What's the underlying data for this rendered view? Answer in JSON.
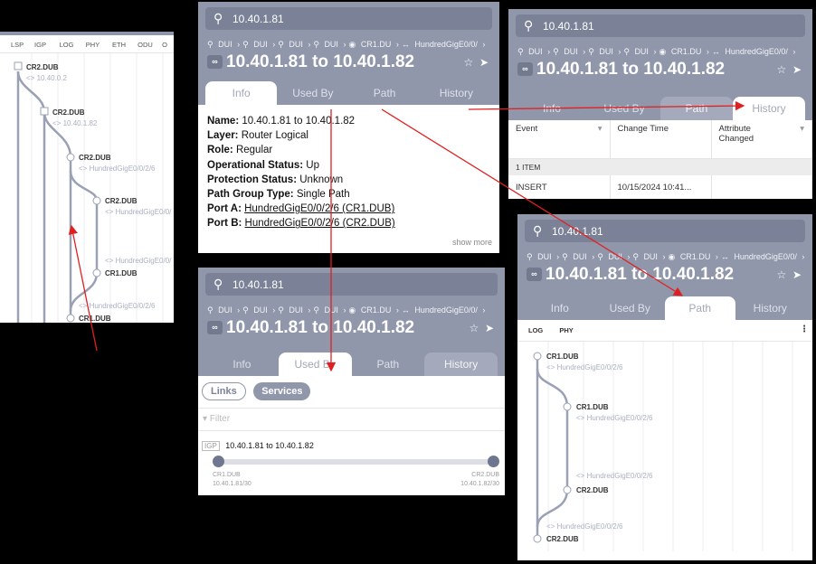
{
  "common": {
    "search_value": "10.40.1.81",
    "breadcrumbs": [
      "DUI",
      "DUI",
      "DUI",
      "DUI",
      "CR1.DU",
      "HundredGigE0/0/"
    ],
    "title": "10.40.1.81 to 10.40.1.82",
    "tabs": [
      "Info",
      "Used By",
      "Path",
      "History"
    ]
  },
  "left_panel": {
    "columns": [
      "LSP",
      "IGP",
      "LOG",
      "PHY",
      "ETH",
      "ODU",
      "O"
    ],
    "nodes": [
      {
        "name": "CR2.DUB",
        "sub": "<> 10.40.0.2"
      },
      {
        "name": "CR2.DUB",
        "sub": "<> 10.40.1.82"
      },
      {
        "name": "CR2.DUB",
        "sub": "<> HundredGigE0/0/2/6"
      },
      {
        "name": "CR2.DUB",
        "sub": "<> HundredGigE0/0/"
      },
      {
        "name": "CR1.DUB",
        "sub": "<> HundredGigE0/0/"
      },
      {
        "name": "CR1.DUB",
        "sub": "<> HundredGigE0/0/2/6"
      }
    ]
  },
  "info_panel": {
    "fields": [
      {
        "label": "Name:",
        "value": "10.40.1.81 to 10.40.1.82"
      },
      {
        "label": "Layer:",
        "value": "Router Logical"
      },
      {
        "label": "Role:",
        "value": "Regular"
      },
      {
        "label": "Operational Status:",
        "value": "Up"
      },
      {
        "label": "Protection Status:",
        "value": "Unknown"
      },
      {
        "label": "Path Group Type:",
        "value": "Single Path"
      },
      {
        "label": "Port A:",
        "value": "HundredGigE0/0/2/6 (CR1.DUB)"
      },
      {
        "label": "Port B:",
        "value": "HundredGigE0/0/2/6 (CR2.DUB)"
      }
    ],
    "show_more": "show more"
  },
  "history_panel": {
    "columns": [
      "Event",
      "Change Time",
      "Attribute Changed"
    ],
    "group_label": "1 ITEM",
    "rows": [
      {
        "event": "INSERT",
        "time": "10/15/2024 10:41...",
        "attr": ""
      }
    ]
  },
  "usedby_panel": {
    "toggles": [
      "Links",
      "Services"
    ],
    "filter_placeholder": "Filter",
    "item": {
      "badge": "IGP",
      "name": "10.40.1.81 to 10.40.1.82",
      "a_node": "CR1.DUB",
      "a_ip": "10.40.1.81/30",
      "b_node": "CR2.DUB",
      "b_ip": "10.40.1.82/30"
    }
  },
  "path_panel": {
    "layers": [
      "LOG",
      "PHY"
    ],
    "nodes": [
      {
        "name": "CR1.DUB",
        "sub": "<> HundredGigE0/0/2/6"
      },
      {
        "name": "CR1.DUB",
        "sub": "<> HundredGigE0/0/2/6"
      },
      {
        "name": "CR2.DUB",
        "sub": "<> HundredGigE0/0/2/6"
      },
      {
        "name": "CR2.DUB",
        "sub": "<> HundredGigE0/0/2/6"
      }
    ]
  },
  "colors": {
    "header": "#9097ab",
    "accent_arrow": "#e02020",
    "path_line": "#9aa1b5"
  }
}
